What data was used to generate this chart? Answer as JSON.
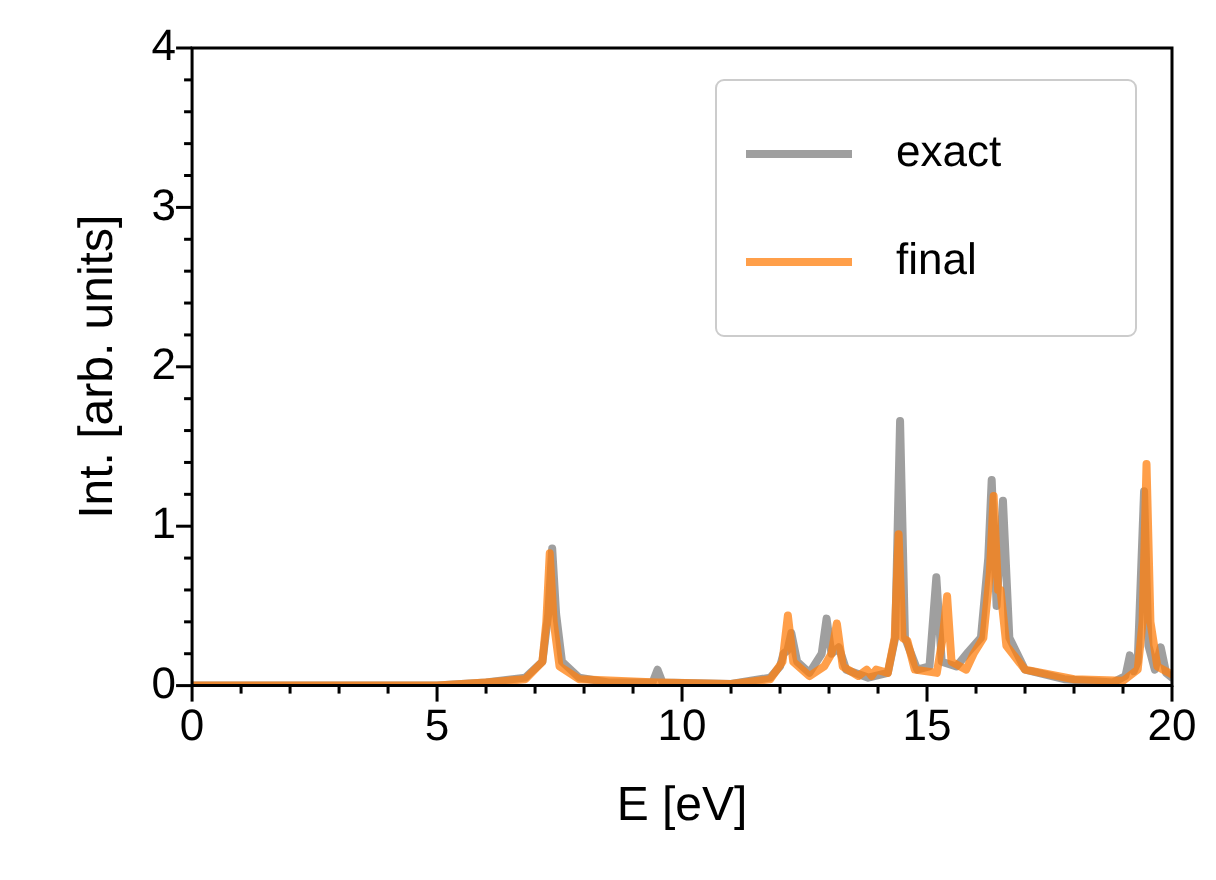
{
  "chart_data": {
    "type": "line",
    "xlabel": "E [eV]",
    "ylabel": "Int. [arb. units]",
    "xlim": [
      0,
      20
    ],
    "xticks": [
      0,
      {
        "value": 1,
        "label": null
      },
      {
        "value": 2,
        "label": null
      },
      {
        "value": 3,
        "label": null
      },
      {
        "value": 4,
        "label": null
      },
      5,
      {
        "value": 6,
        "label": null
      },
      {
        "value": 7,
        "label": null
      },
      {
        "value": 8,
        "label": null
      },
      {
        "value": 9,
        "label": null
      },
      10,
      {
        "value": 11,
        "label": null
      },
      {
        "value": 12,
        "label": null
      },
      {
        "value": 13,
        "label": null
      },
      {
        "value": 14,
        "label": null
      },
      15,
      {
        "value": 16,
        "label": null
      },
      {
        "value": 17,
        "label": null
      },
      {
        "value": 18,
        "label": null
      },
      {
        "value": 19,
        "label": null
      },
      20
    ],
    "ylim": [
      0,
      4
    ],
    "yticks": [
      0,
      {
        "value": 0.2,
        "label": null
      },
      {
        "value": 0.4,
        "label": null
      },
      {
        "value": 0.6,
        "label": null
      },
      {
        "value": 0.8,
        "label": null
      },
      1,
      {
        "value": 1.2,
        "label": null
      },
      {
        "value": 1.4,
        "label": null
      },
      {
        "value": 1.6,
        "label": null
      },
      {
        "value": 1.8,
        "label": null
      },
      2,
      {
        "value": 2.2,
        "label": null
      },
      {
        "value": 2.4,
        "label": null
      },
      {
        "value": 2.6,
        "label": null
      },
      {
        "value": 2.8,
        "label": null
      },
      3,
      {
        "value": 3.2,
        "label": null
      },
      {
        "value": 3.4,
        "label": null
      },
      {
        "value": 3.6,
        "label": null
      },
      {
        "value": 3.8,
        "label": null
      },
      4
    ],
    "grid": false,
    "legend": "top right",
    "marker": "none",
    "line_style": "solid",
    "series": [
      {
        "name": "exact",
        "color": "#808080",
        "x": [
          0,
          5,
          6,
          6.8,
          7.15,
          7.27,
          7.35,
          7.43,
          7.55,
          7.9,
          8.5,
          9.4,
          9.5,
          9.6,
          11,
          11.4,
          11.8,
          12.0,
          12.07,
          12.15,
          12.23,
          12.35,
          12.6,
          12.85,
          12.95,
          13.05,
          13.2,
          13.35,
          13.8,
          14.2,
          14.35,
          14.45,
          14.55,
          14.8,
          15.05,
          15.19,
          15.3,
          15.6,
          15.84,
          16.1,
          16.25,
          16.32,
          16.42,
          16.55,
          16.68,
          17.0,
          17.8,
          18.27,
          18.8,
          19.05,
          19.14,
          19.22,
          19.3,
          19.43,
          19.52,
          19.65,
          19.77,
          19.88,
          20
        ],
        "values": [
          0,
          0,
          0.02,
          0.05,
          0.15,
          0.45,
          0.86,
          0.45,
          0.15,
          0.05,
          0.02,
          0.02,
          0.1,
          0.02,
          0.01,
          0.03,
          0.05,
          0.12,
          0.2,
          0.22,
          0.33,
          0.15,
          0.08,
          0.2,
          0.42,
          0.2,
          0.24,
          0.1,
          0.05,
          0.08,
          0.3,
          1.66,
          0.3,
          0.1,
          0.12,
          0.68,
          0.15,
          0.12,
          0.21,
          0.3,
          0.8,
          1.29,
          0.5,
          1.16,
          0.3,
          0.1,
          0.04,
          0.03,
          0.02,
          0.06,
          0.19,
          0.09,
          0.15,
          1.22,
          0.25,
          0.1,
          0.24,
          0.08,
          0.05
        ]
      },
      {
        "name": "final",
        "color": "#ff7f0e",
        "x": [
          0,
          5,
          6,
          6.8,
          7.15,
          7.23,
          7.3,
          7.38,
          7.5,
          7.9,
          9.5,
          11,
          11.8,
          12.05,
          12.16,
          12.27,
          12.6,
          12.9,
          13.05,
          13.16,
          13.28,
          13.6,
          13.77,
          13.87,
          13.96,
          14.2,
          14.34,
          14.42,
          14.5,
          14.6,
          14.75,
          15.2,
          15.32,
          15.41,
          15.5,
          15.8,
          15.95,
          16.15,
          16.28,
          16.36,
          16.45,
          16.5,
          16.62,
          17.0,
          18,
          19.0,
          19.3,
          19.4,
          19.48,
          19.56,
          19.7,
          20
        ],
        "values": [
          0,
          0,
          0.02,
          0.04,
          0.15,
          0.4,
          0.83,
          0.4,
          0.12,
          0.04,
          0.02,
          0.01,
          0.04,
          0.15,
          0.44,
          0.15,
          0.06,
          0.12,
          0.2,
          0.39,
          0.12,
          0.06,
          0.1,
          0.06,
          0.1,
          0.08,
          0.3,
          0.95,
          0.3,
          0.28,
          0.1,
          0.08,
          0.3,
          0.56,
          0.15,
          0.1,
          0.2,
          0.3,
          0.7,
          1.19,
          0.6,
          0.6,
          0.25,
          0.1,
          0.04,
          0.03,
          0.1,
          0.4,
          1.39,
          0.4,
          0.12,
          0.07
        ]
      }
    ]
  }
}
